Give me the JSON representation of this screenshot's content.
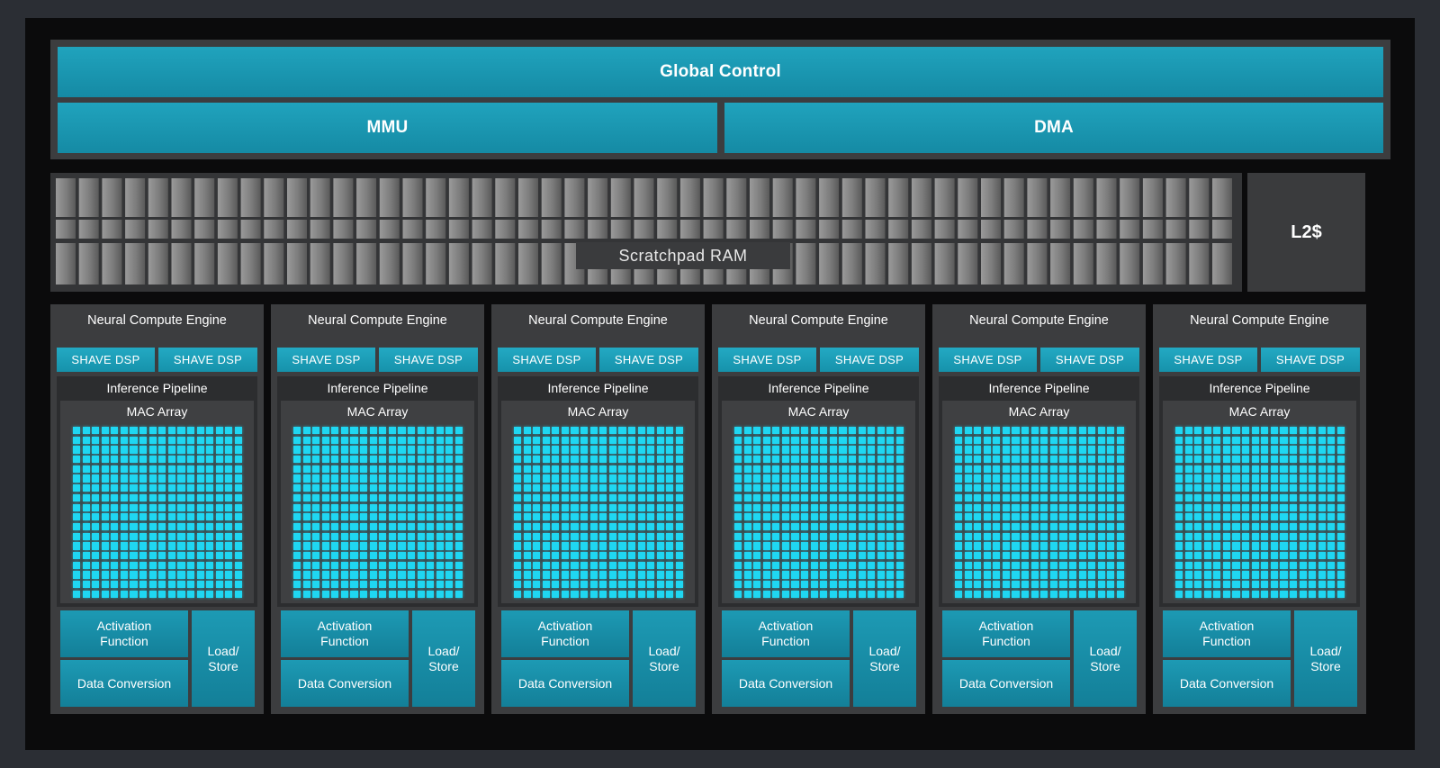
{
  "top": {
    "global_control": "Global Control",
    "mmu": "MMU",
    "dma": "DMA"
  },
  "memory": {
    "scratchpad": "Scratchpad RAM",
    "l2": "L2$"
  },
  "nce_count": 6,
  "nce": {
    "title": "Neural Compute Engine",
    "shave_dsp": "SHAVE DSP",
    "inference_pipeline": "Inference Pipeline",
    "mac_array": "MAC Array",
    "activation_function": "Activation Function",
    "data_conversion": "Data Conversion",
    "load_store": "Load/ Store"
  },
  "colors": {
    "background": "#0b0b0c",
    "teal": "#1a96b0",
    "mac_cell": "#1fd7f2",
    "panel": "#3c3d3f"
  }
}
